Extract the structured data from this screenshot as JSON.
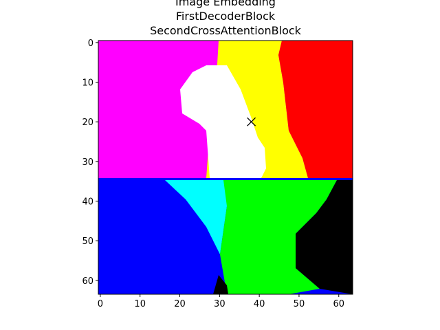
{
  "chart_data": {
    "type": "image",
    "title": [
      "Image Embedding",
      "FirstDecoderBlock",
      "SecondCrossAttentionBlock"
    ],
    "xlim": [
      -0.5,
      63.5
    ],
    "ylim": [
      63.5,
      -0.5
    ],
    "xticks": [
      0,
      10,
      20,
      30,
      40,
      50,
      60
    ],
    "yticks": [
      0,
      10,
      20,
      30,
      40,
      50,
      60
    ],
    "series": [
      {
        "x": [
          38
        ],
        "values": [
          20
        ],
        "marker": "x",
        "color": "#000000"
      }
    ]
  }
}
